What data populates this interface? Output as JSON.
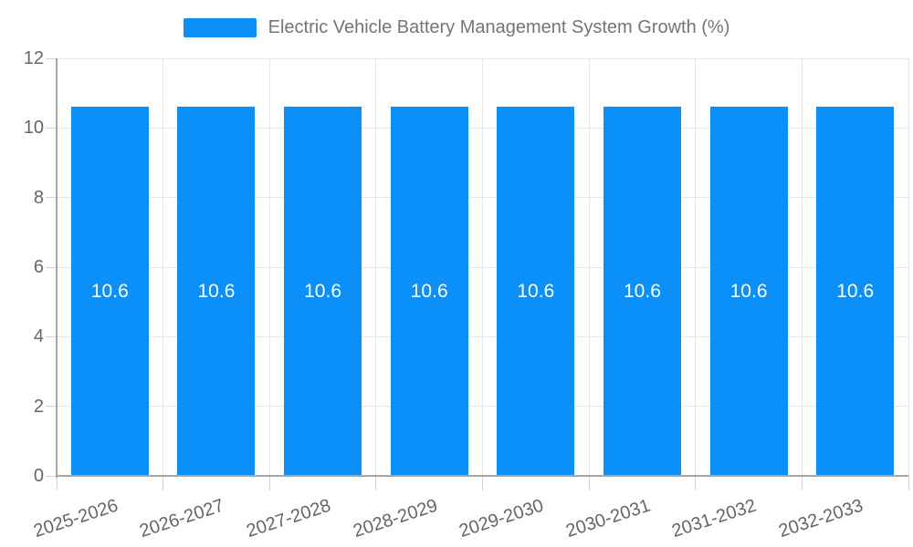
{
  "chart_data": {
    "type": "bar",
    "title": "Electric Vehicle Battery Management System Growth (%)",
    "categories": [
      "2025-2026",
      "2026-2027",
      "2027-2028",
      "2028-2029",
      "2029-2030",
      "2030-2031",
      "2031-2032",
      "2032-2033"
    ],
    "values": [
      10.6,
      10.6,
      10.6,
      10.6,
      10.6,
      10.6,
      10.6,
      10.6
    ],
    "bar_value_labels": [
      "10.6",
      "10.6",
      "10.6",
      "10.6",
      "10.6",
      "10.6",
      "10.6",
      "10.6"
    ],
    "xlabel": "",
    "ylabel": "",
    "ylim": [
      0,
      12
    ],
    "yticks": [
      0,
      2,
      4,
      6,
      8,
      10,
      12
    ],
    "grid": true,
    "legend_position": "top-center",
    "colors": {
      "bar": "#0b8ff8",
      "bar_label_text": "#ffffff",
      "legend_swatch": "#0b8ff8",
      "legend_text": "#757575",
      "tick_label_text": "#666666",
      "gridline": "#e6e6e6",
      "tick_mark": "#d2d2d2",
      "axis_line": "#a6a6a6",
      "background": "#ffffff"
    }
  }
}
